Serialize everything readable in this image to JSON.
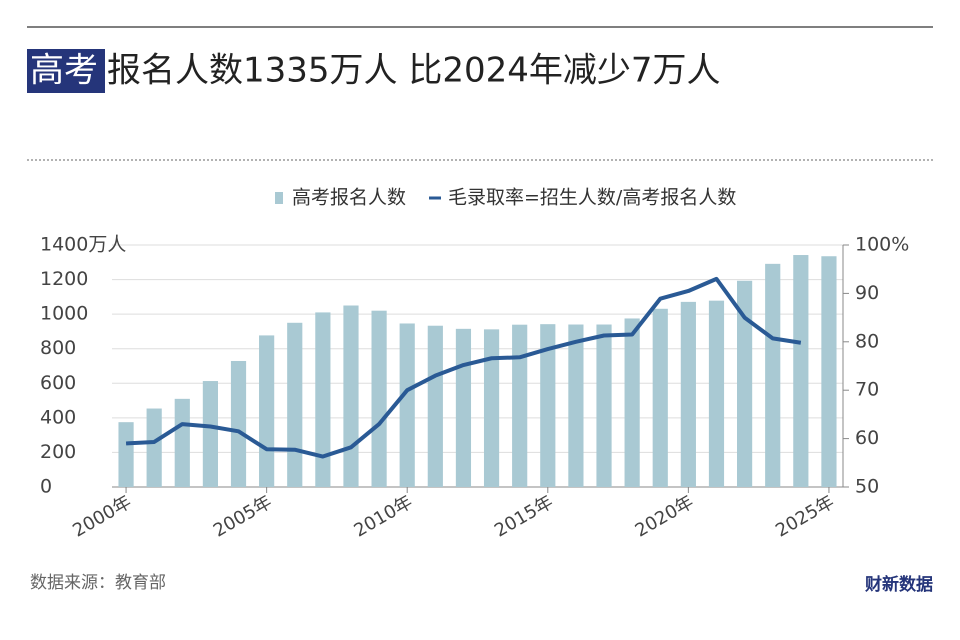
{
  "chart_data": {
    "type": "bar-line",
    "title_highlight": "高考",
    "title": "报名人数1335万人 比2024年减少7万人",
    "source": "数据来源：教育部",
    "logo": "财新数据",
    "categories": [
      "2000年",
      null,
      null,
      null,
      null,
      "2005年",
      null,
      null,
      null,
      null,
      "2010年",
      null,
      null,
      null,
      null,
      "2015年",
      null,
      null,
      null,
      null,
      "2020年",
      null,
      null,
      null,
      null,
      "2025年"
    ],
    "series": [
      {
        "name": "高考报名人数",
        "color": "#a9c9d3",
        "type": "bar",
        "values": [
          375,
          454,
          510,
          613,
          729,
          877,
          950,
          1010,
          1050,
          1020,
          946,
          933,
          915,
          912,
          939,
          942,
          940,
          940,
          975,
          1031,
          1071,
          1078,
          1193,
          1291,
          1342,
          1335
        ]
      },
      {
        "name": "毛录取率=招生人数/高考报名人数",
        "color": "#2a5a95",
        "type": "line",
        "axis": "y2",
        "values": [
          59,
          59.3,
          63,
          62.5,
          61.5,
          57.8,
          57.7,
          56.3,
          58.2,
          63,
          70,
          73,
          75.2,
          76.6,
          76.8,
          78.5,
          80,
          81.3,
          81.5,
          88.9,
          90.5,
          93,
          85,
          80.7,
          79.8,
          null
        ]
      }
    ],
    "ylim": [
      0,
      1400
    ],
    "yticks": [
      0,
      200,
      400,
      600,
      800,
      1000,
      1200,
      {
        "value": 1400,
        "label": "1400万人"
      }
    ],
    "y2lim": [
      50,
      100
    ],
    "y2ticks": [
      50,
      60,
      70,
      80,
      90,
      {
        "value": 100,
        "label": "100%"
      }
    ],
    "grid": true
  }
}
